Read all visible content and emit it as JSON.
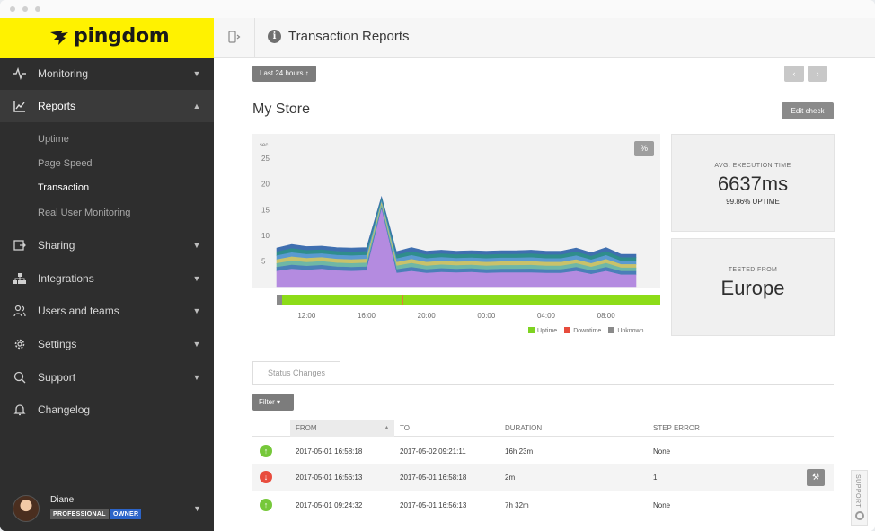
{
  "brand": {
    "name": "pingdom",
    "logo_icon": "pingdom-bird-icon"
  },
  "sidebar": {
    "items": [
      {
        "label": "Monitoring",
        "icon": "pulse-icon",
        "chevron": "chevron-down-icon"
      },
      {
        "label": "Reports",
        "icon": "chart-icon",
        "chevron": "chevron-up-icon"
      },
      {
        "label": "Sharing",
        "icon": "share-icon",
        "chevron": "chevron-down-icon"
      },
      {
        "label": "Integrations",
        "icon": "network-icon",
        "chevron": "chevron-down-icon"
      },
      {
        "label": "Users and teams",
        "icon": "users-icon",
        "chevron": "chevron-down-icon"
      },
      {
        "label": "Settings",
        "icon": "gear-icon",
        "chevron": "chevron-down-icon"
      },
      {
        "label": "Support",
        "icon": "chat-icon",
        "chevron": "chevron-down-icon"
      },
      {
        "label": "Changelog",
        "icon": "bell-icon"
      }
    ],
    "reports_sub": [
      "Uptime",
      "Page Speed",
      "Transaction",
      "Real User Monitoring"
    ],
    "user": {
      "name": "Diane",
      "badge_plan": "PROFESSIONAL",
      "badge_role": "OWNER"
    }
  },
  "header": {
    "title": "Transaction Reports"
  },
  "toolbar": {
    "range": "Last 24 hours ↕",
    "prev": "‹",
    "next": "›",
    "edit": "Edit check"
  },
  "check": {
    "name": "My Store"
  },
  "chart_toggle": "%",
  "chart_data": {
    "type": "area",
    "ylabel": "sec",
    "y_ticks": [
      "25",
      "20",
      "15",
      "10",
      "5"
    ],
    "ylim": [
      0,
      28
    ],
    "x_ticks": [
      "12:00",
      "16:00",
      "20:00",
      "00:00",
      "04:00",
      "08:00"
    ],
    "x_hours": [
      0,
      1,
      2,
      3,
      4,
      5,
      6,
      7,
      8,
      9,
      10,
      11,
      12,
      13,
      14,
      15,
      16,
      17,
      18,
      19,
      20,
      21,
      22,
      23,
      24
    ],
    "total": [
      7.5,
      8.2,
      7.8,
      7.9,
      7.6,
      7.5,
      7.6,
      17.5,
      6.8,
      7.6,
      6.9,
      7.1,
      6.9,
      7.0,
      6.9,
      7.0,
      7.0,
      7.1,
      6.9,
      6.9,
      7.5,
      6.6,
      7.6,
      6.3,
      6.3
    ],
    "purple": [
      3.0,
      3.4,
      3.2,
      3.4,
      3.1,
      3.0,
      3.1,
      15.0,
      2.6,
      3.0,
      2.6,
      2.8,
      2.7,
      2.8,
      2.6,
      2.7,
      2.7,
      2.7,
      2.6,
      2.6,
      3.0,
      2.4,
      3.0,
      2.3,
      2.3
    ],
    "layers_colors": [
      "#b48be0",
      "#4a7fb8",
      "#6fb7a6",
      "#c9c26a",
      "#5a9ad0",
      "#2f8d8c",
      "#3f6fb0"
    ],
    "legend": [
      {
        "label": "Uptime",
        "color": "#7ed321"
      },
      {
        "label": "Downtime",
        "color": "#e74c3c"
      },
      {
        "label": "Unknown",
        "color": "#8a8a8a"
      }
    ],
    "status_bar": {
      "uptime_color": "#8ddc18",
      "unknown_color": "#8a8a8a",
      "downtime_color": "#e07b39"
    }
  },
  "stats": {
    "exec_caption": "AVG. EXECUTION TIME",
    "exec_value": "6637ms",
    "uptime": "99.86% UPTIME",
    "tested_caption": "TESTED FROM",
    "tested_value": "Europe"
  },
  "tabs": {
    "status_changes": "Status Changes"
  },
  "filter": {
    "label": "Filter ▾"
  },
  "table": {
    "headers": [
      "FROM",
      "TO",
      "DURATION",
      "STEP ERROR"
    ],
    "sort_icon": "sort-asc-icon",
    "rows": [
      {
        "status": "up",
        "from": "2017-05-01 16:58:18",
        "to": "2017-05-02 09:21:11",
        "duration": "16h 23m",
        "error": "None"
      },
      {
        "status": "down",
        "from": "2017-05-01 16:56:13",
        "to": "2017-05-01 16:58:18",
        "duration": "2m",
        "error": "1"
      },
      {
        "status": "up",
        "from": "2017-05-01 09:24:32",
        "to": "2017-05-01 16:56:13",
        "duration": "7h 32m",
        "error": "None"
      }
    ]
  },
  "support": {
    "label": "SUPPORT"
  }
}
